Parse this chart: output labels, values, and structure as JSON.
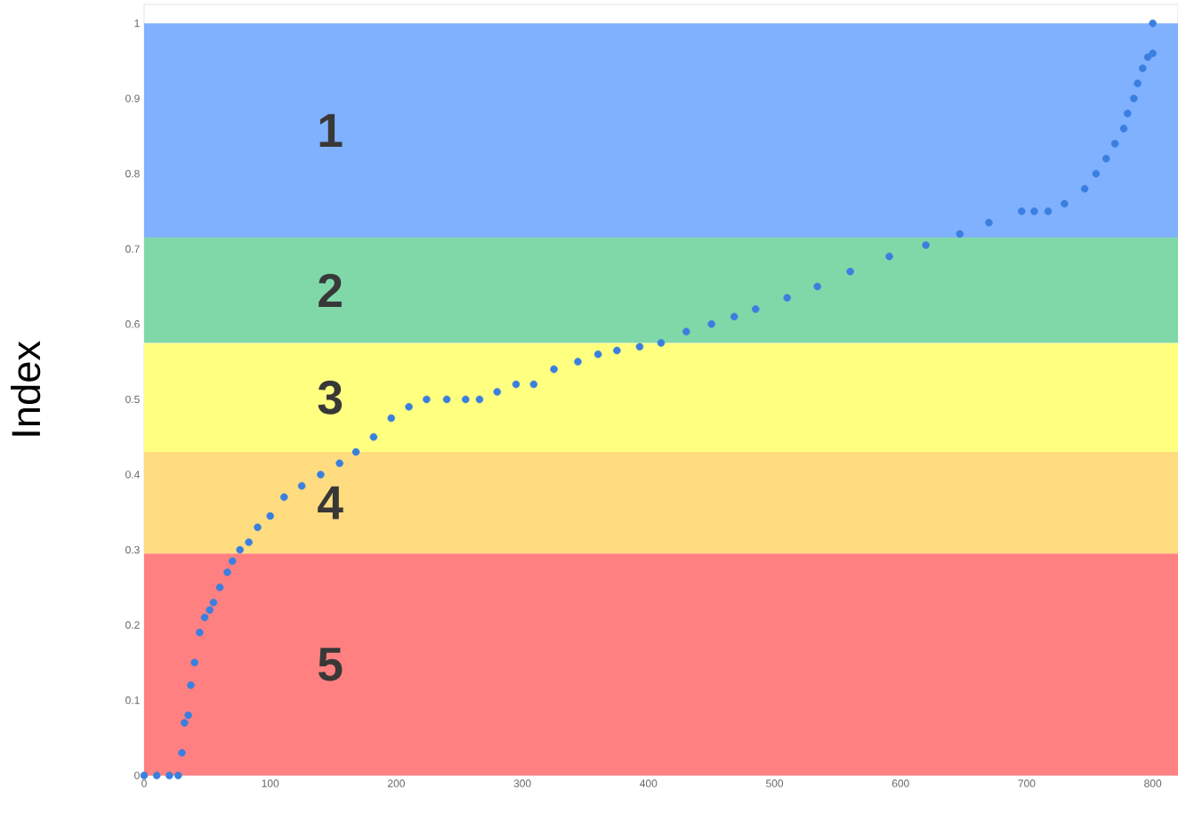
{
  "chart_data": {
    "type": "scatter",
    "ylabel": "Index",
    "marker": "circle",
    "xlim": [
      0,
      820
    ],
    "ylim": [
      0,
      1.025
    ],
    "xticks": [
      0,
      100,
      200,
      300,
      400,
      500,
      600,
      700,
      800
    ],
    "yticks": [
      0,
      0.1,
      0.2,
      0.3,
      0.4,
      0.5,
      0.6,
      0.7,
      0.8,
      0.9,
      1
    ],
    "bands": [
      {
        "axis": "y",
        "from": 0.715,
        "to": 1,
        "label": "1",
        "color": "#80b1ff"
      },
      {
        "axis": "y",
        "from": 0.575,
        "to": 0.715,
        "label": "2",
        "color": "#80d8a8"
      },
      {
        "axis": "y",
        "from": 0.43,
        "to": 0.575,
        "label": "3",
        "color": "#ffff80"
      },
      {
        "axis": "y",
        "from": 0.295,
        "to": 0.43,
        "label": "4",
        "color": "#ffdc80"
      },
      {
        "axis": "y",
        "from": 0,
        "to": 0.295,
        "label": "5",
        "color": "#ff8080"
      }
    ],
    "series": [
      {
        "color": "#3a7fe0",
        "x": [
          0,
          10,
          20,
          27,
          30,
          32,
          35,
          37,
          40,
          44,
          48,
          52,
          55,
          60,
          66,
          70,
          76,
          83,
          90,
          100,
          111,
          125,
          140,
          155,
          168,
          182,
          196,
          210,
          224,
          240,
          255,
          266,
          280,
          295,
          309,
          325,
          344,
          360,
          375,
          393,
          410,
          430,
          450,
          468,
          485,
          510,
          534,
          560,
          591,
          620,
          647,
          670,
          696,
          706,
          717,
          730,
          746,
          755,
          763,
          770,
          777,
          780,
          785,
          788,
          792,
          796,
          800,
          800
        ],
        "values": [
          0,
          0,
          0,
          0,
          0.03,
          0.07,
          0.08,
          0.12,
          0.15,
          0.19,
          0.21,
          0.22,
          0.23,
          0.25,
          0.27,
          0.285,
          0.3,
          0.31,
          0.33,
          0.345,
          0.37,
          0.385,
          0.4,
          0.415,
          0.43,
          0.45,
          0.475,
          0.49,
          0.5,
          0.5,
          0.5,
          0.5,
          0.51,
          0.52,
          0.52,
          0.54,
          0.55,
          0.56,
          0.565,
          0.57,
          0.575,
          0.59,
          0.6,
          0.61,
          0.62,
          0.635,
          0.65,
          0.67,
          0.69,
          0.705,
          0.72,
          0.735,
          0.75,
          0.75,
          0.75,
          0.76,
          0.78,
          0.8,
          0.82,
          0.84,
          0.86,
          0.88,
          0.9,
          0.92,
          0.94,
          0.955,
          0.96,
          1.0
        ]
      }
    ]
  }
}
